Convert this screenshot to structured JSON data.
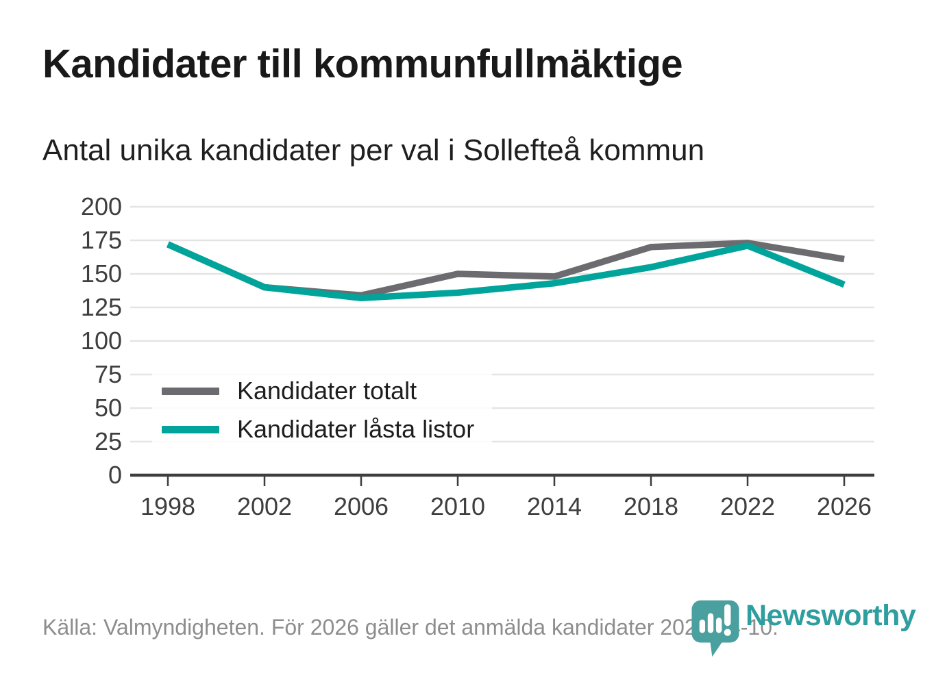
{
  "chart_data": {
    "type": "line",
    "title": "Kandidater till kommunfullmäktige",
    "subtitle": "Antal unika kandidater per val i Sollefteå kommun",
    "x": [
      1998,
      2002,
      2006,
      2010,
      2014,
      2018,
      2022,
      2026
    ],
    "series": [
      {
        "name": "Kandidater totalt",
        "color": "#6b6b70",
        "values": [
          172,
          140,
          134,
          150,
          148,
          170,
          173,
          161
        ]
      },
      {
        "name": "Kandidater låsta listor",
        "color": "#00a49b",
        "values": [
          172,
          140,
          132,
          136,
          143,
          155,
          171,
          142
        ]
      }
    ],
    "xlabel": "",
    "ylabel": "",
    "ylim": [
      0,
      200
    ],
    "ytick_step": 25,
    "grid": true,
    "grid_color": "#e4e4e4",
    "axis_color": "#3d3d3d",
    "tick_label_color": "#3e3e3e",
    "legend_position": "inside bottom-left"
  },
  "footer": {
    "source": "Källa: Valmyndigheten. För 2026 gäller det anmälda kandidater 2026-04-10.",
    "logo_text": "Newsworthy",
    "logo_color": "#2f9e9e",
    "logo_icon_color": "#4a9f9f",
    "logo_icon": "bar-chart-speech-bubble-icon"
  }
}
